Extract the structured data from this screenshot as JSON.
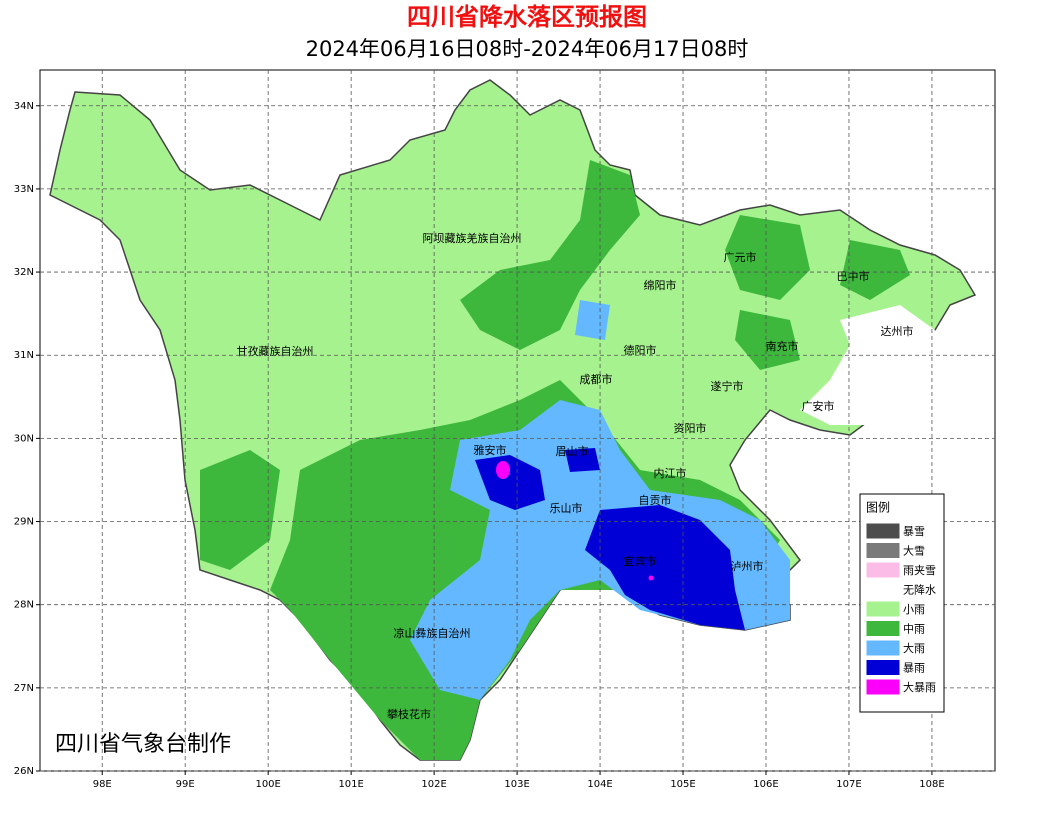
{
  "header": {
    "title": "四川省降水落区预报图",
    "subtitle": "2024年06月16日08时-2024年06月17日08时"
  },
  "map": {
    "xlim": [
      97.25,
      108.76
    ],
    "ylim": [
      26,
      34.43
    ],
    "xticks": [
      {
        "value": 98,
        "label": "98E"
      },
      {
        "value": 99,
        "label": "99E"
      },
      {
        "value": 100,
        "label": "100E"
      },
      {
        "value": 101,
        "label": "101E"
      },
      {
        "value": 102,
        "label": "102E"
      },
      {
        "value": 103,
        "label": "103E"
      },
      {
        "value": 104,
        "label": "104E"
      },
      {
        "value": 105,
        "label": "105E"
      },
      {
        "value": 106,
        "label": "106E"
      },
      {
        "value": 107,
        "label": "107E"
      },
      {
        "value": 108,
        "label": "108E"
      }
    ],
    "yticks": [
      {
        "value": 26,
        "label": "26N"
      },
      {
        "value": 27,
        "label": "27N"
      },
      {
        "value": 28,
        "label": "28N"
      },
      {
        "value": 29,
        "label": "29N"
      },
      {
        "value": 30,
        "label": "30N"
      },
      {
        "value": 31,
        "label": "31N"
      },
      {
        "value": 32,
        "label": "32N"
      },
      {
        "value": 33,
        "label": "33N"
      },
      {
        "value": 34,
        "label": "34N"
      }
    ],
    "grid": true,
    "cities": [
      "阿坝藏族羌族自治州",
      "广元市",
      "巴中市",
      "绵阳市",
      "达州市",
      "甘孜藏族自治州",
      "德阳市",
      "南充市",
      "成都市",
      "遂宁市",
      "广安市",
      "资阳市",
      "雅安市",
      "眉山市",
      "内江市",
      "乐山市",
      "自贡市",
      "宜宾市",
      "泸州市",
      "凉山彝族自治州",
      "攀枝花市"
    ]
  },
  "legend": {
    "title": "图例",
    "items": [
      {
        "label": "暴雪",
        "color": "#4d4d4d"
      },
      {
        "label": "大雪",
        "color": "#7a7a7a"
      },
      {
        "label": "雨夹雪",
        "color": "#fbbde8"
      },
      {
        "label": "无降水",
        "color": "#ffffff"
      },
      {
        "label": "小雨",
        "color": "#a6f28f"
      },
      {
        "label": "中雨",
        "color": "#3db83d"
      },
      {
        "label": "大雨",
        "color": "#63b8ff"
      },
      {
        "label": "暴雨",
        "color": "#0000d6"
      },
      {
        "label": "大暴雨",
        "color": "#fa00fa"
      }
    ]
  },
  "credit": "四川省气象台制作"
}
